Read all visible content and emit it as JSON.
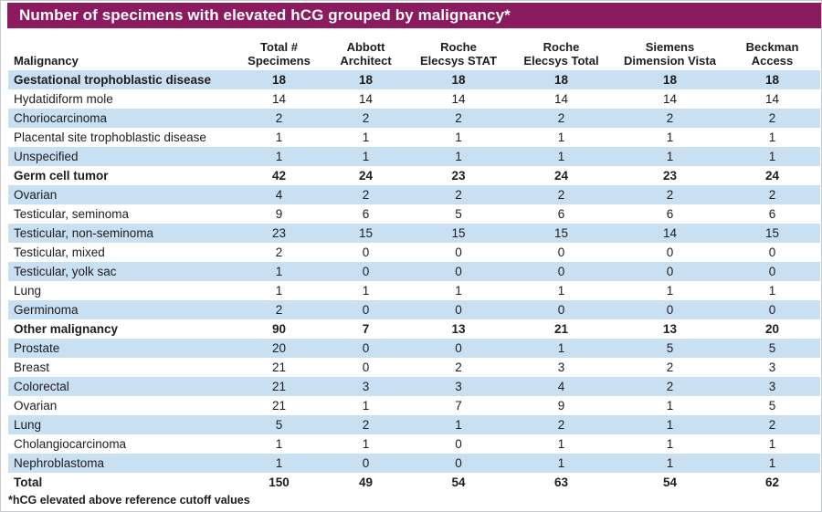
{
  "title": "Number of specimens with elevated hCG grouped by malignancy*",
  "footnote": "*hCG elevated above reference cutoff values",
  "colors": {
    "title_bar_bg": "#8C1A5E",
    "title_text": "#FFFFFF",
    "row_alt_bg": "#C9DFF2",
    "text": "#1D1D1F"
  },
  "chart_data": {
    "type": "table",
    "title": "Number of specimens with elevated hCG grouped by malignancy*",
    "row_header": "Malignancy",
    "columns": [
      {
        "line1": "Total #",
        "line2": "Specimens"
      },
      {
        "line1": "Abbott",
        "line2": "Architect"
      },
      {
        "line1": "Roche",
        "line2": "Elecsys STAT"
      },
      {
        "line1": "Roche",
        "line2": "Elecsys Total"
      },
      {
        "line1": "Siemens",
        "line2": "Dimension Vista"
      },
      {
        "line1": "Beckman",
        "line2": "Access"
      }
    ],
    "rows": [
      {
        "label": "Gestational trophoblastic disease",
        "bold": true,
        "values": [
          18,
          18,
          18,
          18,
          18,
          18
        ]
      },
      {
        "label": "Hydatidiform mole",
        "bold": false,
        "values": [
          14,
          14,
          14,
          14,
          14,
          14
        ]
      },
      {
        "label": "Choriocarcinoma",
        "bold": false,
        "values": [
          2,
          2,
          2,
          2,
          2,
          2
        ]
      },
      {
        "label": "Placental site trophoblastic disease",
        "bold": false,
        "values": [
          1,
          1,
          1,
          1,
          1,
          1
        ]
      },
      {
        "label": "Unspecified",
        "bold": false,
        "values": [
          1,
          1,
          1,
          1,
          1,
          1
        ]
      },
      {
        "label": "Germ cell tumor",
        "bold": true,
        "values": [
          42,
          24,
          23,
          24,
          23,
          24
        ]
      },
      {
        "label": "Ovarian",
        "bold": false,
        "values": [
          4,
          2,
          2,
          2,
          2,
          2
        ]
      },
      {
        "label": "Testicular, seminoma",
        "bold": false,
        "values": [
          9,
          6,
          5,
          6,
          6,
          6
        ]
      },
      {
        "label": "Testicular, non-seminoma",
        "bold": false,
        "values": [
          23,
          15,
          15,
          15,
          14,
          15
        ]
      },
      {
        "label": "Testicular, mixed",
        "bold": false,
        "values": [
          2,
          0,
          0,
          0,
          0,
          0
        ]
      },
      {
        "label": "Testicular, yolk sac",
        "bold": false,
        "values": [
          1,
          0,
          0,
          0,
          0,
          0
        ]
      },
      {
        "label": "Lung",
        "bold": false,
        "values": [
          1,
          1,
          1,
          1,
          1,
          1
        ]
      },
      {
        "label": "Germinoma",
        "bold": false,
        "values": [
          2,
          0,
          0,
          0,
          0,
          0
        ]
      },
      {
        "label": "Other malignancy",
        "bold": true,
        "values": [
          90,
          7,
          13,
          21,
          13,
          20
        ]
      },
      {
        "label": "Prostate",
        "bold": false,
        "values": [
          20,
          0,
          0,
          1,
          5,
          5
        ]
      },
      {
        "label": "Breast",
        "bold": false,
        "values": [
          21,
          0,
          2,
          3,
          2,
          3
        ]
      },
      {
        "label": "Colorectal",
        "bold": false,
        "values": [
          21,
          3,
          3,
          4,
          2,
          3
        ]
      },
      {
        "label": "Ovarian",
        "bold": false,
        "values": [
          21,
          1,
          7,
          9,
          1,
          5
        ]
      },
      {
        "label": "Lung",
        "bold": false,
        "values": [
          5,
          2,
          1,
          2,
          1,
          2
        ]
      },
      {
        "label": "Cholangiocarcinoma",
        "bold": false,
        "values": [
          1,
          1,
          0,
          1,
          1,
          1
        ]
      },
      {
        "label": "Nephroblastoma",
        "bold": false,
        "values": [
          1,
          0,
          0,
          1,
          1,
          1
        ]
      },
      {
        "label": "Total",
        "bold": true,
        "values": [
          150,
          49,
          54,
          63,
          54,
          62
        ]
      }
    ],
    "footnote": "*hCG elevated above reference cutoff values"
  }
}
